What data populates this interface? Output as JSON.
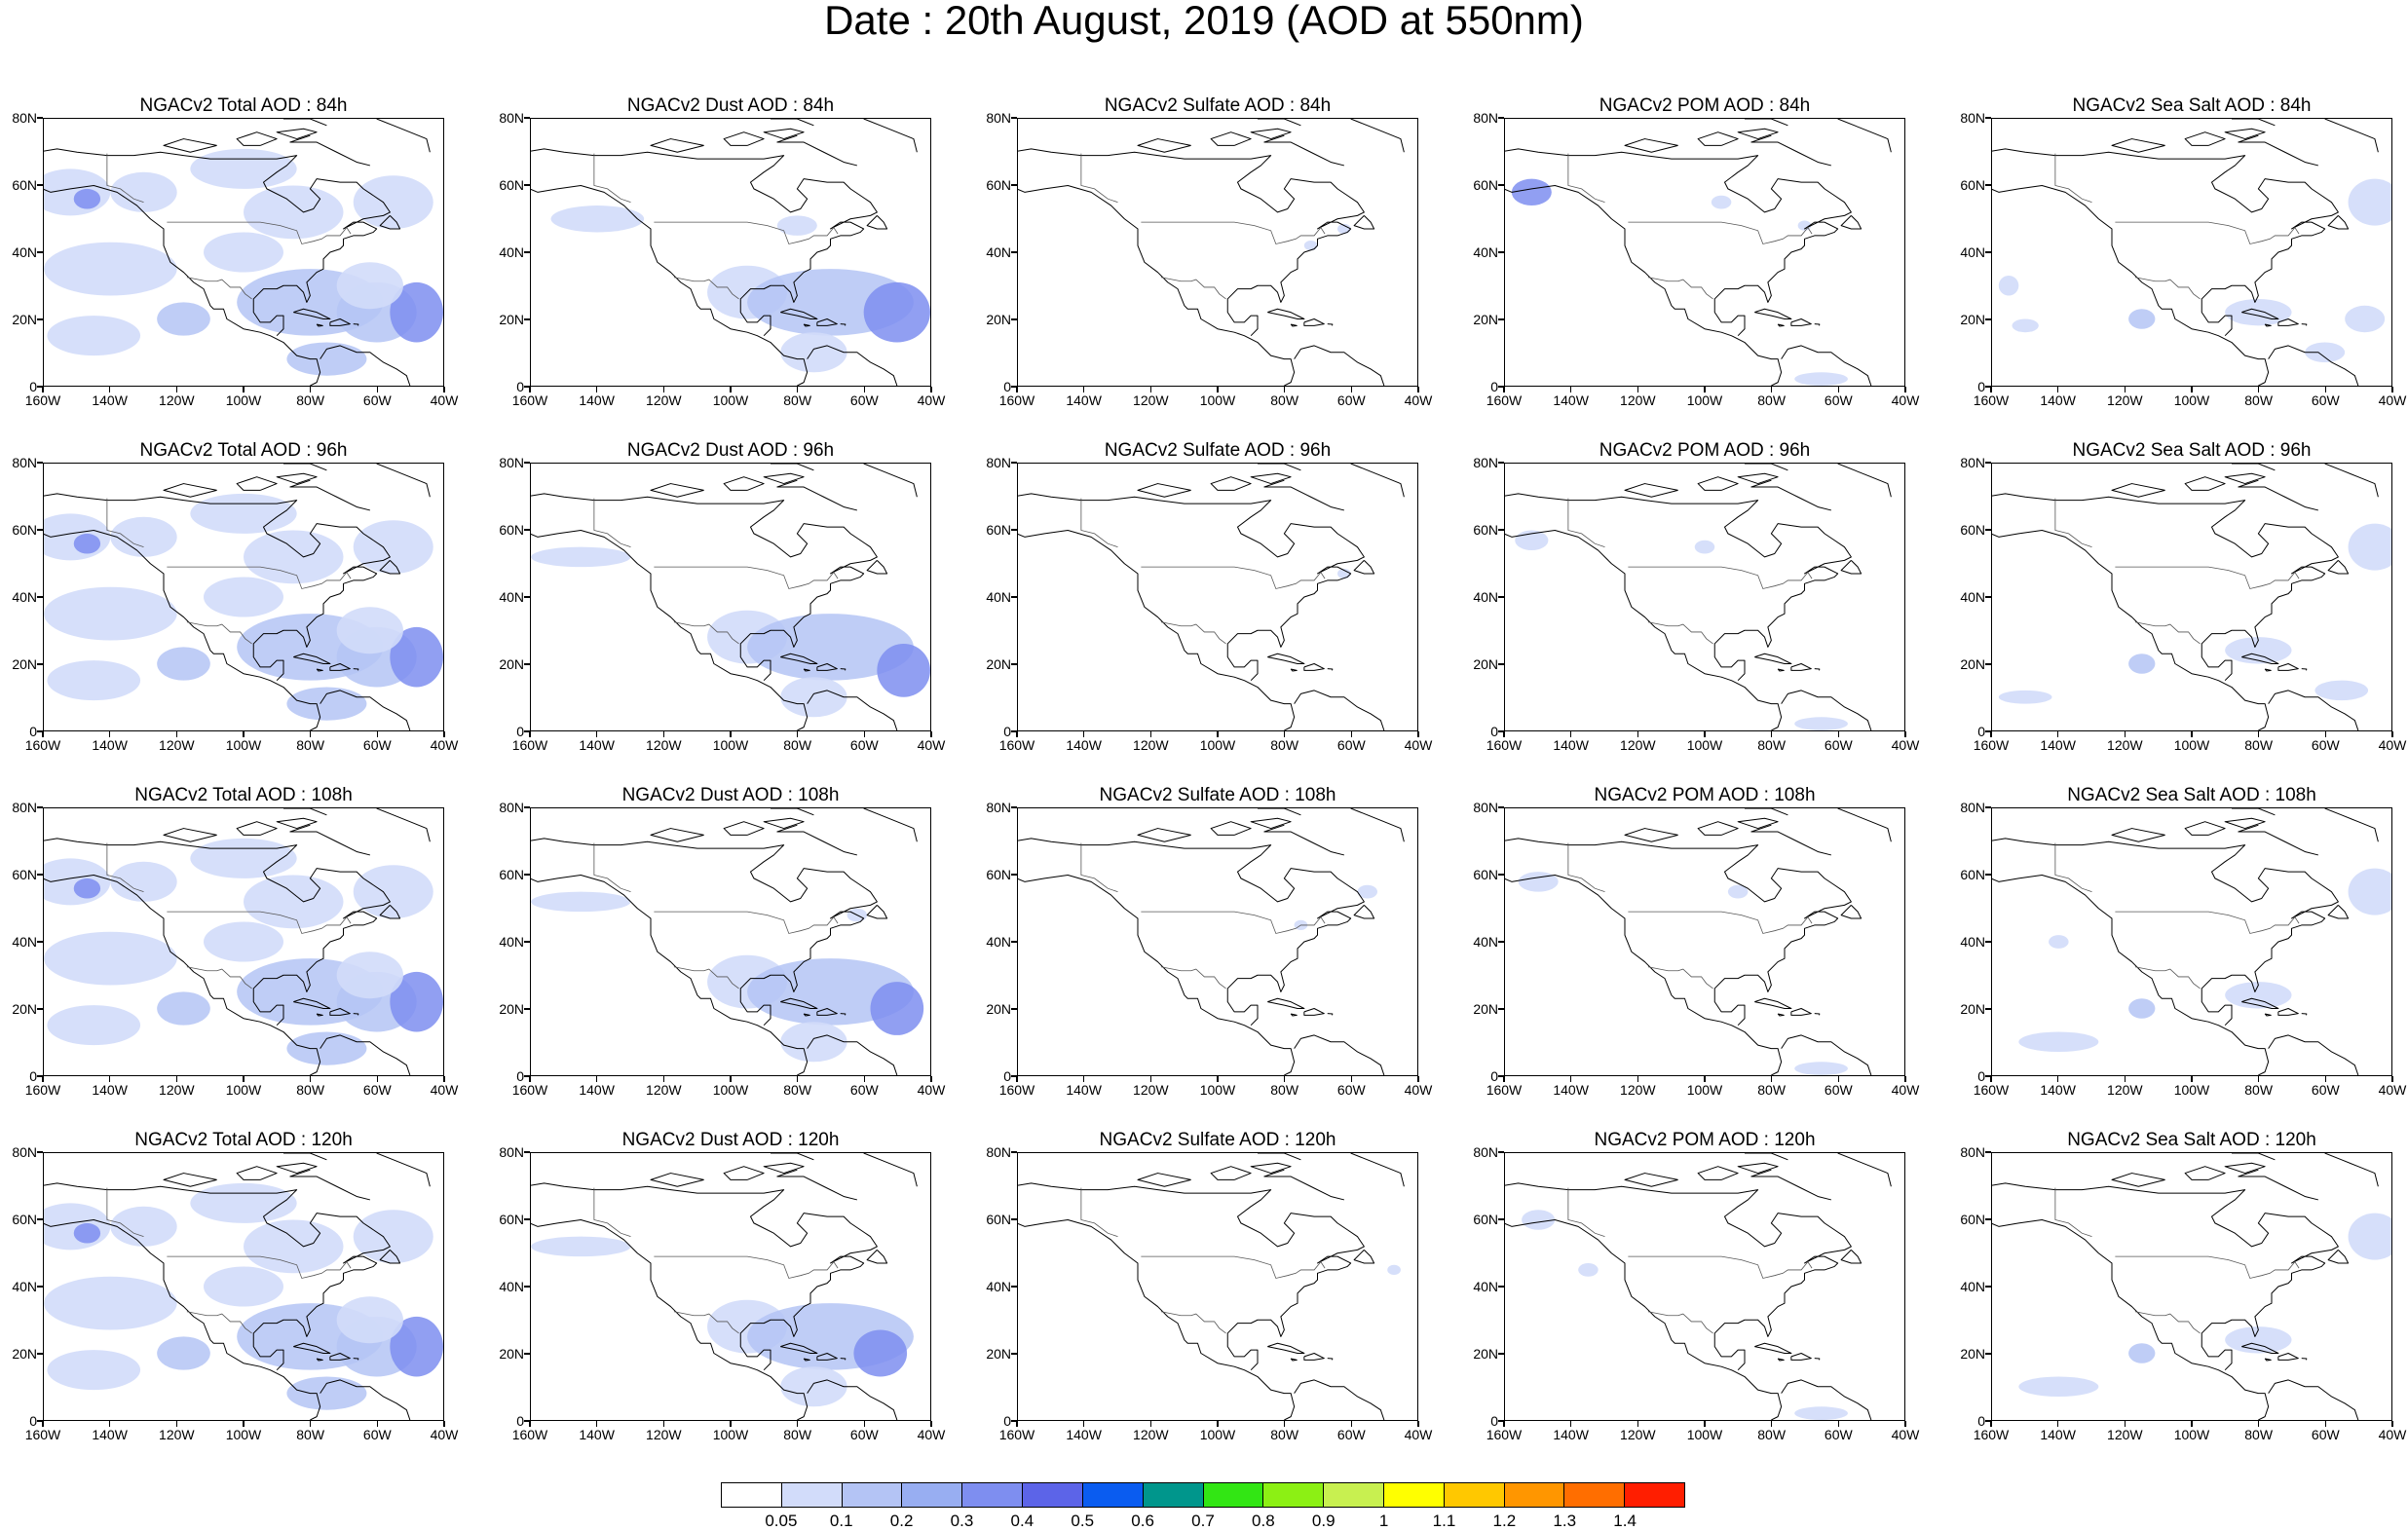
{
  "title": "Date : 20th August, 2019 (AOD at 550nm)",
  "axes": {
    "lon_labels": [
      "160W",
      "140W",
      "120W",
      "100W",
      "80W",
      "60W",
      "40W"
    ],
    "lat_labels": [
      "80N",
      "60N",
      "40N",
      "20N",
      "0"
    ],
    "lon_range": [
      -160,
      -40
    ],
    "lat_range": [
      0,
      80
    ]
  },
  "panel_titles": [
    [
      "NGACv2 Total AOD : 84h",
      "NGACv2 Dust AOD : 84h",
      "NGACv2 Sulfate AOD : 84h",
      "NGACv2 POM AOD : 84h",
      "NGACv2 Sea Salt AOD : 84h"
    ],
    [
      "NGACv2 Total AOD : 96h",
      "NGACv2 Dust AOD : 96h",
      "NGACv2 Sulfate AOD : 96h",
      "NGACv2 POM AOD : 96h",
      "NGACv2 Sea Salt AOD : 96h"
    ],
    [
      "NGACv2 Total AOD : 108h",
      "NGACv2 Dust AOD : 108h",
      "NGACv2 Sulfate AOD : 108h",
      "NGACv2 POM AOD : 108h",
      "NGACv2 Sea Salt AOD : 108h"
    ],
    [
      "NGACv2 Total AOD : 120h",
      "NGACv2 Dust AOD : 120h",
      "NGACv2 Sulfate AOD : 120h",
      "NGACv2 POM AOD : 120h",
      "NGACv2 Sea Salt  AOD : 120h"
    ]
  ],
  "colorbar": {
    "labels": [
      "0.05",
      "0.1",
      "0.2",
      "0.3",
      "0.4",
      "0.5",
      "0.6",
      "0.7",
      "0.8",
      "0.9",
      "1",
      "1.1",
      "1.2",
      "1.3",
      "1.4"
    ],
    "colors": [
      "#ffffff",
      "#d2dcfa",
      "#b4c4f5",
      "#98aef2",
      "#7e8ef0",
      "#5c64e8",
      "#0a5cf0",
      "#00968c",
      "#32e614",
      "#8cf014",
      "#c8f050",
      "#ffff00",
      "#ffc800",
      "#ff9600",
      "#ff6e00",
      "#ff1e00"
    ]
  },
  "colors": {
    "land_outline": "#000000",
    "aod_light": "#d2dcfa",
    "aod_medium": "#b4c4f5",
    "aod_strong": "#7e8ef0",
    "aod_peak": "#5c64e8"
  }
}
